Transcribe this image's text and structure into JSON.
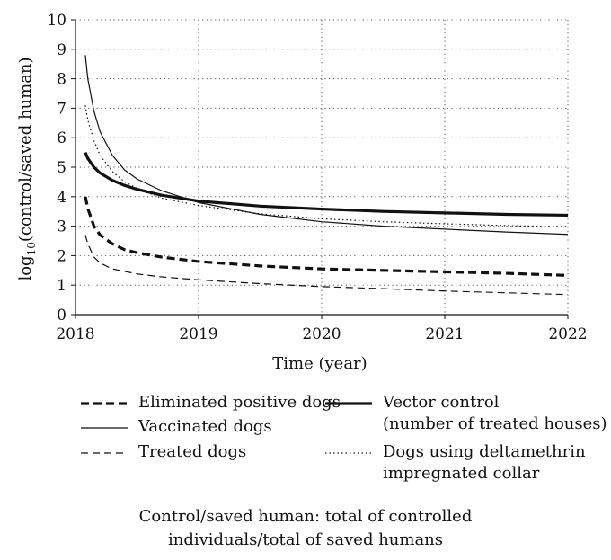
{
  "chart_data": {
    "type": "line",
    "ylabel_main": "log",
    "ylabel_sub": "10",
    "ylabel_rest": "(control/saved human)",
    "xlabel": "Time (year)",
    "xlim": [
      2018,
      2022
    ],
    "ylim": [
      0,
      10
    ],
    "xticks": [
      "2018",
      "2019",
      "2020",
      "2021",
      "2022"
    ],
    "yticks": [
      "0",
      "1",
      "2",
      "3",
      "4",
      "5",
      "6",
      "7",
      "8",
      "9",
      "10"
    ],
    "grid": true,
    "legend_position": "bottom",
    "series": [
      {
        "name": "Eliminated positive dogs",
        "style": "dashed-thick",
        "x": [
          2018.08,
          2018.1,
          2018.15,
          2018.2,
          2018.3,
          2018.4,
          2018.5,
          2018.7,
          2019.0,
          2019.5,
          2020.0,
          2020.5,
          2021.0,
          2021.5,
          2022.0
        ],
        "y": [
          4.0,
          3.6,
          3.0,
          2.7,
          2.4,
          2.2,
          2.1,
          1.95,
          1.8,
          1.65,
          1.55,
          1.5,
          1.45,
          1.4,
          1.33
        ]
      },
      {
        "name": "Vaccinated dogs",
        "style": "solid-thin",
        "x": [
          2018.08,
          2018.1,
          2018.15,
          2018.2,
          2018.3,
          2018.4,
          2018.5,
          2018.7,
          2019.0,
          2019.5,
          2020.0,
          2020.5,
          2021.0,
          2021.5,
          2022.0
        ],
        "y": [
          8.8,
          8.0,
          6.9,
          6.2,
          5.4,
          4.9,
          4.6,
          4.2,
          3.8,
          3.4,
          3.15,
          3.0,
          2.9,
          2.8,
          2.72
        ]
      },
      {
        "name": "Treated dogs",
        "style": "dashed-thin",
        "x": [
          2018.08,
          2018.1,
          2018.15,
          2018.2,
          2018.3,
          2018.5,
          2018.7,
          2019.0,
          2019.5,
          2020.0,
          2020.5,
          2021.0,
          2021.5,
          2022.0
        ],
        "y": [
          2.7,
          2.4,
          1.95,
          1.75,
          1.55,
          1.38,
          1.28,
          1.18,
          1.05,
          0.95,
          0.88,
          0.8,
          0.74,
          0.68
        ]
      },
      {
        "name": "Vector control\n(number of treated houses)",
        "style": "solid-thick",
        "x": [
          2018.08,
          2018.1,
          2018.15,
          2018.2,
          2018.3,
          2018.4,
          2018.5,
          2018.7,
          2019.0,
          2019.5,
          2020.0,
          2020.5,
          2021.0,
          2021.5,
          2022.0
        ],
        "y": [
          5.5,
          5.3,
          5.0,
          4.8,
          4.55,
          4.38,
          4.25,
          4.05,
          3.85,
          3.68,
          3.58,
          3.5,
          3.45,
          3.4,
          3.37
        ]
      },
      {
        "name": "Dogs using deltamethrin\nimpregnated collar",
        "style": "dotted",
        "x": [
          2018.08,
          2018.1,
          2018.15,
          2018.2,
          2018.3,
          2018.4,
          2018.5,
          2018.7,
          2019.0,
          2019.5,
          2020.0,
          2020.5,
          2021.0,
          2021.5,
          2022.0
        ],
        "y": [
          7.1,
          6.6,
          5.9,
          5.4,
          4.85,
          4.5,
          4.28,
          3.95,
          3.7,
          3.42,
          3.25,
          3.15,
          3.08,
          3.02,
          2.98
        ]
      }
    ]
  },
  "caption": "Control/saved human: total of controlled\nindividuals/total of saved humans"
}
